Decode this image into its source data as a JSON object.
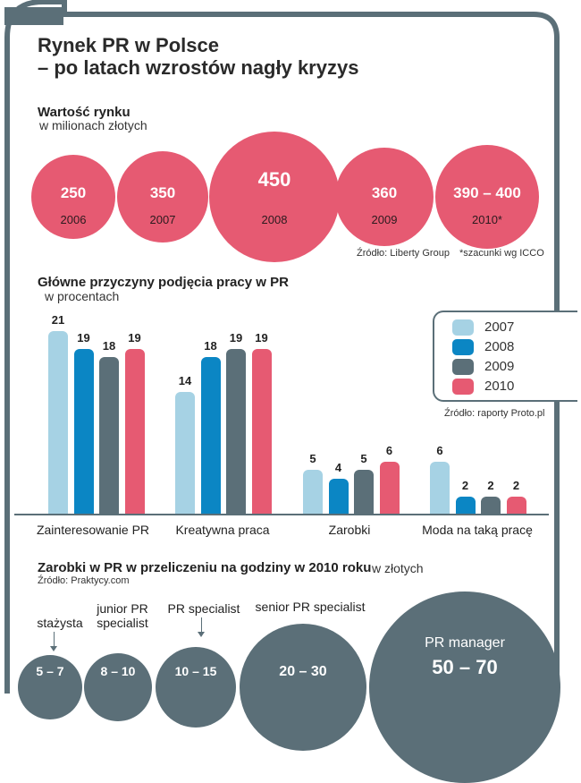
{
  "title_line1": "Rynek PR w Polsce",
  "title_line2": "– po latach wzrostów nagły kryzys",
  "colors": {
    "frame": "#5b6f78",
    "pink": "#e65a72",
    "light_blue": "#a6d2e4",
    "blue": "#0b86c4",
    "slate": "#5b6f78"
  },
  "market": {
    "title": "Wartość rynku",
    "subtitle": "w milionach złotych",
    "source": "Źródło: Liberty Group",
    "note": "*szacunki wg ICCO"
  },
  "reasons": {
    "title": "Główne przyczyny podjęcia pracy w PR",
    "subtitle": "w procentach",
    "source": "Źródło: raporty Proto.pl"
  },
  "salary": {
    "title": "Zarobki w PR w przeliczeniu na godziny w 2010 roku",
    "unit": "w złotych",
    "source": "Źródło: Praktycy.com",
    "items": [
      {
        "role": "stażysta",
        "range": "5 – 7"
      },
      {
        "role": "junior PR specialist",
        "range": "8 – 10"
      },
      {
        "role": "PR specialist",
        "range": "10 – 15"
      },
      {
        "role": "senior PR specialist",
        "range": "20 – 30"
      },
      {
        "role": "PR manager",
        "range": "50 – 70"
      }
    ]
  },
  "chart_data": [
    {
      "type": "bubble",
      "title": "Wartość rynku",
      "subtitle": "w milionach złotych",
      "categories": [
        "2006",
        "2007",
        "2008",
        "2009",
        "2010*"
      ],
      "values": [
        250,
        350,
        450,
        360,
        395
      ],
      "value_labels": [
        "250",
        "350",
        "450",
        "360",
        "390 – 400"
      ]
    },
    {
      "type": "bar",
      "title": "Główne przyczyny podjęcia pracy w PR",
      "subtitle": "w procentach",
      "categories": [
        "Zainteresowanie PR",
        "Kreatywna praca",
        "Zarobki",
        "Moda na taką pracę"
      ],
      "series": [
        {
          "name": "2007",
          "color": "#a6d2e4",
          "values": [
            21,
            14,
            5,
            6
          ]
        },
        {
          "name": "2008",
          "color": "#0b86c4",
          "values": [
            19,
            18,
            4,
            2
          ]
        },
        {
          "name": "2009",
          "color": "#5b6f78",
          "values": [
            18,
            19,
            5,
            2
          ]
        },
        {
          "name": "2010",
          "color": "#e65a72",
          "values": [
            19,
            19,
            6,
            2
          ]
        }
      ],
      "ylim": [
        0,
        21
      ]
    }
  ]
}
